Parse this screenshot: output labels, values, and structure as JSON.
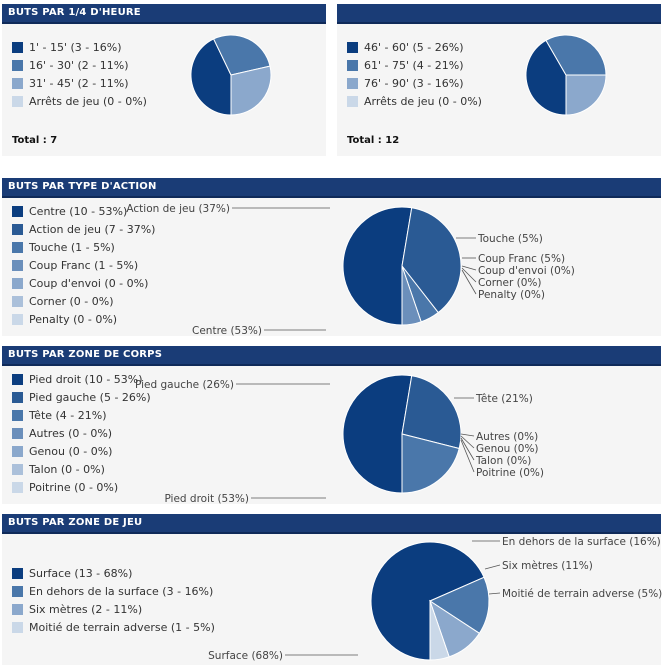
{
  "colors": {
    "c1": "#0b3d7f",
    "c2": "#2a5a94",
    "c3": "#4a77aa",
    "c4": "#6b8fbb",
    "c5": "#8ba8cc",
    "c6": "#abc0da",
    "c7": "#cad8e8"
  },
  "panels": {
    "quarter1": {
      "title": "BUTS PAR 1/4 D'HEURE",
      "total": "Total : 7",
      "legend": [
        "1' - 15' (3 - 16%)",
        "16' - 30' (2 - 11%)",
        "31' - 45' (2 - 11%)",
        "Arrêts de jeu (0 - 0%)"
      ]
    },
    "quarter2": {
      "total": "Total : 12",
      "legend": [
        "46' - 60' (5 - 26%)",
        "61' - 75' (4 - 21%)",
        "76' - 90' (3 - 16%)",
        "Arrêts de jeu (0 - 0%)"
      ]
    },
    "action": {
      "title": "BUTS PAR TYPE D'ACTION",
      "legend": [
        "Centre (10 - 53%)",
        "Action de jeu (7 - 37%)",
        "Touche (1 - 5%)",
        "Coup Franc (1 - 5%)",
        "Coup d'envoi (0 - 0%)",
        "Corner (0 - 0%)",
        "Penalty (0 - 0%)"
      ]
    },
    "body": {
      "title": "BUTS PAR ZONE DE CORPS",
      "legend": [
        "Pied droit (10 - 53%)",
        "Pied gauche (5 - 26%)",
        "Tête (4 - 21%)",
        "Autres (0 - 0%)",
        "Genou (0 - 0%)",
        "Talon (0 - 0%)",
        "Poitrine (0 - 0%)"
      ]
    },
    "zone": {
      "title": "BUTS PAR ZONE DE JEU",
      "legend": [
        "Surface (13 - 68%)",
        "En dehors de la surface (3 - 16%)",
        "Six mètres (2 - 11%)",
        "Moitié de terrain adverse (1 - 5%)"
      ]
    }
  },
  "chart_data": [
    {
      "type": "pie",
      "title": "BUTS PAR 1/4 D'HEURE",
      "categories": [
        "1' - 15'",
        "16' - 30'",
        "31' - 45'",
        "Arrêts de jeu"
      ],
      "values": [
        3,
        2,
        2,
        0
      ],
      "percent": [
        16,
        11,
        11,
        0
      ]
    },
    {
      "type": "pie",
      "categories": [
        "46' - 60'",
        "61' - 75'",
        "76' - 90'",
        "Arrêts de jeu"
      ],
      "values": [
        5,
        4,
        3,
        0
      ],
      "percent": [
        26,
        21,
        16,
        0
      ]
    },
    {
      "type": "pie",
      "title": "BUTS PAR TYPE D'ACTION",
      "categories": [
        "Centre",
        "Action de jeu",
        "Touche",
        "Coup Franc",
        "Coup d'envoi",
        "Corner",
        "Penalty"
      ],
      "values": [
        10,
        7,
        1,
        1,
        0,
        0,
        0
      ],
      "percent": [
        53,
        37,
        5,
        5,
        0,
        0,
        0
      ],
      "labels": [
        "Centre (53%)",
        "Action de jeu (37%)",
        "Touche (5%)",
        "Coup Franc (5%)",
        "Coup d'envoi (0%)",
        "Corner (0%)",
        "Penalty (0%)"
      ]
    },
    {
      "type": "pie",
      "title": "BUTS PAR ZONE DE CORPS",
      "categories": [
        "Pied droit",
        "Pied gauche",
        "Tête",
        "Autres",
        "Genou",
        "Talon",
        "Poitrine"
      ],
      "values": [
        10,
        5,
        4,
        0,
        0,
        0,
        0
      ],
      "percent": [
        53,
        26,
        21,
        0,
        0,
        0,
        0
      ],
      "labels": [
        "Pied droit (53%)",
        "Pied gauche (26%)",
        "Tête (21%)",
        "Autres (0%)",
        "Genou (0%)",
        "Talon (0%)",
        "Poitrine (0%)"
      ]
    },
    {
      "type": "pie",
      "title": "BUTS PAR ZONE DE JEU",
      "categories": [
        "Surface",
        "En dehors de la surface",
        "Six mètres",
        "Moitié de terrain adverse"
      ],
      "values": [
        13,
        3,
        2,
        1
      ],
      "percent": [
        68,
        16,
        11,
        5
      ],
      "labels": [
        "Surface (68%)",
        "En dehors de la surface (16%)",
        "Six mètres (11%)",
        "Moitié de terrain adverse (5%)"
      ]
    }
  ]
}
